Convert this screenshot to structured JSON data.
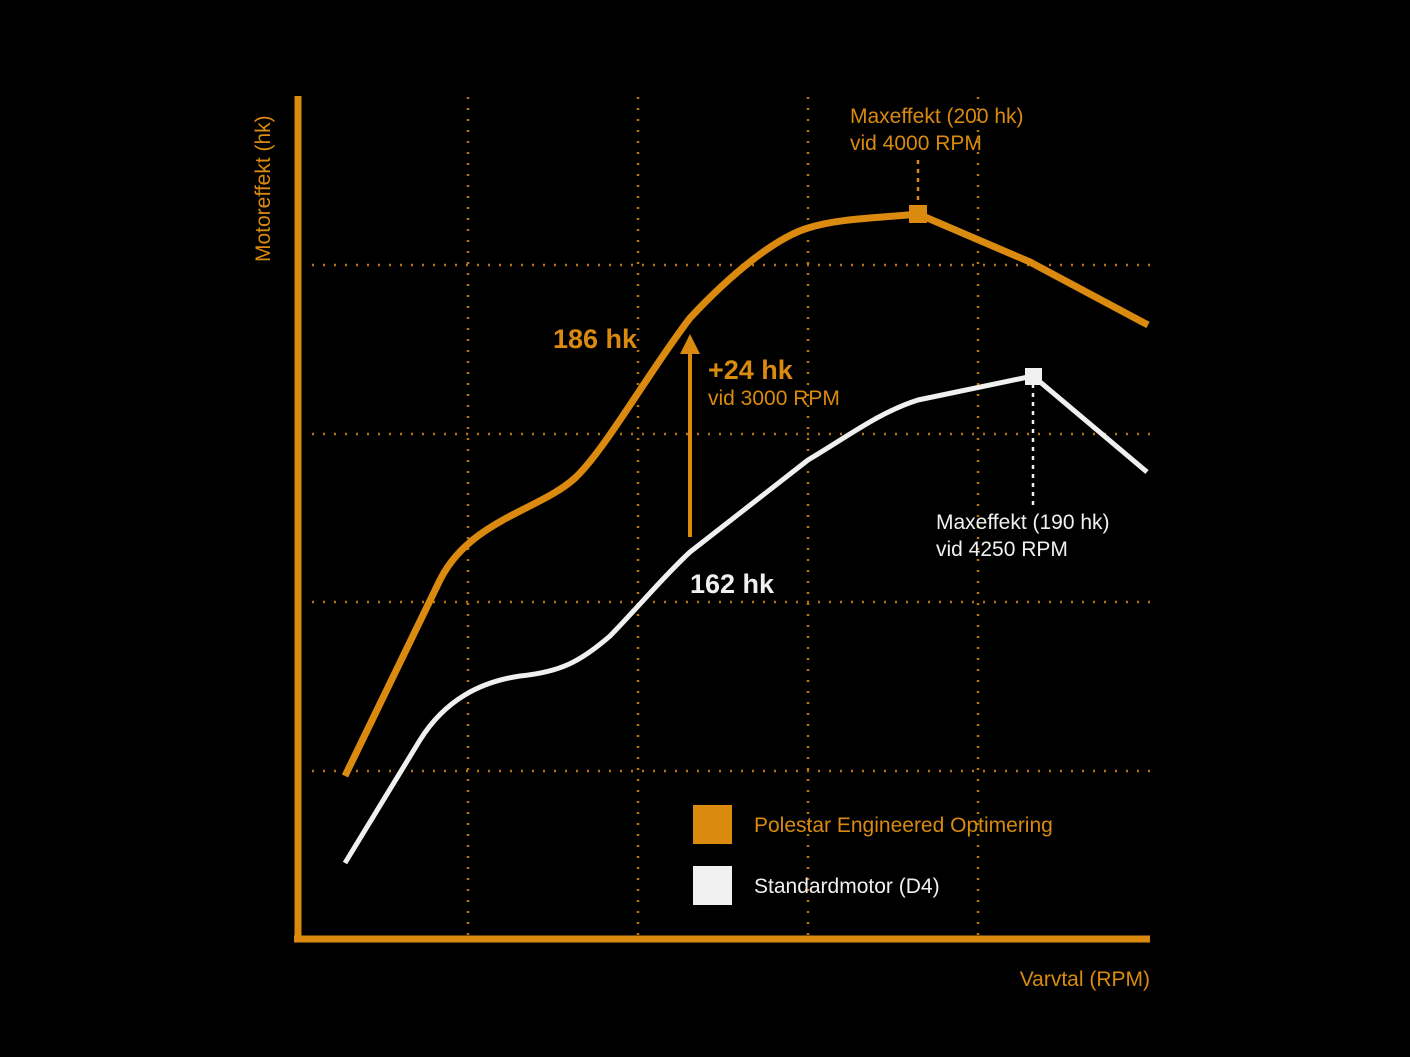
{
  "colors": {
    "background": "#000000",
    "orange": "#d98a0f",
    "white": "#f0f0f0",
    "grid": "#b8770c"
  },
  "chart_data": {
    "type": "line",
    "xlabel": "Varvtal (RPM)",
    "ylabel": "Motoreffekt (hk)",
    "grid": true,
    "legend_position": "bottom-right",
    "x_axis_tick_labels": false,
    "y_axis_tick_labels": false,
    "series": [
      {
        "name": "Polestar Engineered Optimering",
        "color": "#d98a0f",
        "peak": {
          "label": "Maxeffekt (200 hk)",
          "sublabel": "vid 4000 RPM"
        }
      },
      {
        "name": "Standardmotor (D4)",
        "color": "#f0f0f0",
        "peak": {
          "label": "Maxeffekt (190 hk)",
          "sublabel": "vid 4250 RPM"
        }
      }
    ],
    "annotations": {
      "orange_value": "186 hk",
      "white_value": "162 hk",
      "gain": "+24 hk",
      "gain_sub": "vid 3000 RPM"
    }
  }
}
